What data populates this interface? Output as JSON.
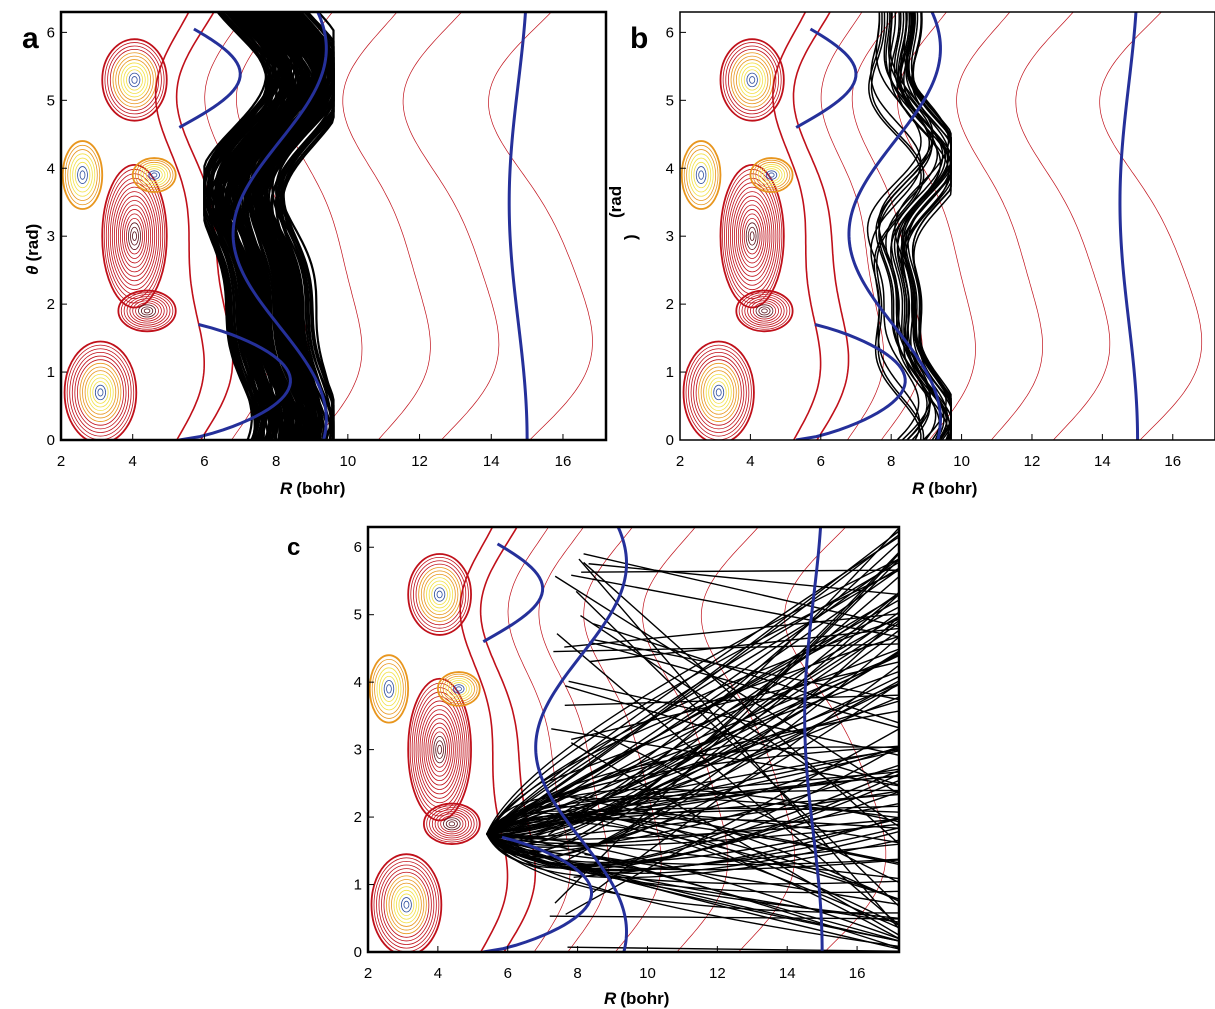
{
  "figure": {
    "panels": [
      {
        "letter": "a",
        "xlabel_var": "R",
        "xlabel_unit": "(bohr)",
        "ylabel_var": "θ",
        "ylabel_unit": "(rad)"
      },
      {
        "letter": "b",
        "xlabel_var": "R",
        "xlabel_unit": "(bohr)",
        "ylabel_broken": "(rad",
        "ylabel_broken2": ")"
      },
      {
        "letter": "c",
        "xlabel_var": "R",
        "xlabel_unit": "(bohr)"
      }
    ]
  },
  "colors": {
    "contour_red": "#c0101a",
    "contour_orange": "#e8961e",
    "contour_yellow": "#f2e046",
    "contour_blue": "#3050a0",
    "dividing_surface": "#25309a",
    "trajectory": "#000000"
  },
  "chart_data": [
    {
      "type": "contour",
      "panel": "a",
      "description_series": [
        "potential energy contours",
        "dividing surfaces",
        "trajectories"
      ],
      "xlim": [
        2,
        17.2
      ],
      "ylim": [
        0,
        6.3
      ],
      "xticks": [
        2,
        4,
        6,
        8,
        10,
        12,
        14,
        16
      ],
      "yticks": [
        0,
        1,
        2,
        3,
        4,
        5,
        6
      ],
      "xlabel": "R (bohr)",
      "ylabel": "θ (rad)",
      "trajectory_style": "dense bundle",
      "trajectory_band_R": [
        6.2,
        9.6
      ]
    },
    {
      "type": "contour",
      "panel": "b",
      "xlim": [
        2,
        17.2
      ],
      "ylim": [
        0,
        6.3
      ],
      "xticks": [
        2,
        4,
        6,
        8,
        10,
        12,
        14,
        16
      ],
      "yticks": [
        0,
        1,
        2,
        3,
        4,
        5,
        6
      ],
      "xlabel": "R (bohr)",
      "ylabel": "(rad\n)",
      "trajectory_style": "sparse bundle",
      "trajectory_band_R": [
        7.0,
        9.6
      ]
    },
    {
      "type": "contour",
      "panel": "c",
      "xlim": [
        2,
        17.2
      ],
      "ylim": [
        0,
        6.3
      ],
      "xticks": [
        2,
        4,
        6,
        8,
        10,
        12,
        14,
        16
      ],
      "yticks": [
        0,
        1,
        2,
        3,
        4,
        5,
        6
      ],
      "xlabel": "R (bohr)",
      "ylabel": "",
      "trajectory_style": "scattering, straight lines to large R",
      "trajectory_origin": [
        5.4,
        1.75
      ]
    }
  ]
}
